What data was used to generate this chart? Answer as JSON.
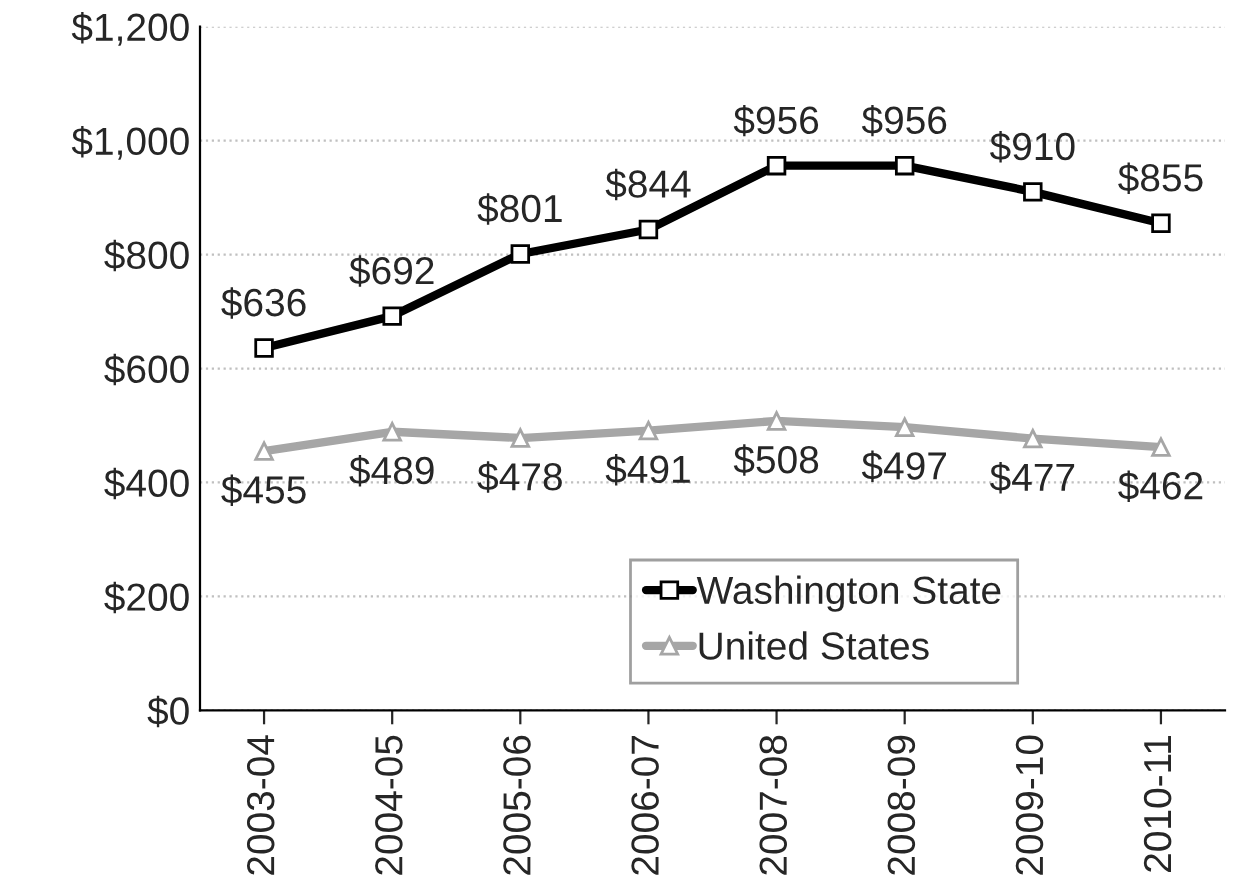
{
  "chart_data": {
    "type": "line",
    "categories": [
      "2003-04",
      "2004-05",
      "2005-06",
      "2006-07",
      "2007-08",
      "2008-09",
      "2009-10",
      "2010-11"
    ],
    "series": [
      {
        "name": "Washington State",
        "color": "#000000",
        "marker": "square",
        "values": [
          636,
          692,
          801,
          844,
          956,
          956,
          910,
          855
        ],
        "value_labels": [
          "$636",
          "$692",
          "$801",
          "$844",
          "$956",
          "$956",
          "$910",
          "$855"
        ]
      },
      {
        "name": "United States",
        "color": "#a6a6a6",
        "marker": "triangle",
        "values": [
          455,
          489,
          478,
          491,
          508,
          497,
          477,
          462
        ],
        "value_labels": [
          "$455",
          "$489",
          "$478",
          "$491",
          "$508",
          "$497",
          "$477",
          "$462"
        ]
      }
    ],
    "ylim": [
      0,
      1200
    ],
    "yticks": [
      {
        "value": 0,
        "label": "$0"
      },
      {
        "value": 200,
        "label": "$200"
      },
      {
        "value": 400,
        "label": "$400"
      },
      {
        "value": 600,
        "label": "$600"
      },
      {
        "value": 800,
        "label": "$800"
      },
      {
        "value": 1000,
        "label": "$1,000"
      },
      {
        "value": 1200,
        "label": "$1,200"
      }
    ],
    "grid": "y",
    "legend": "bottom right",
    "line_style": "solid"
  }
}
